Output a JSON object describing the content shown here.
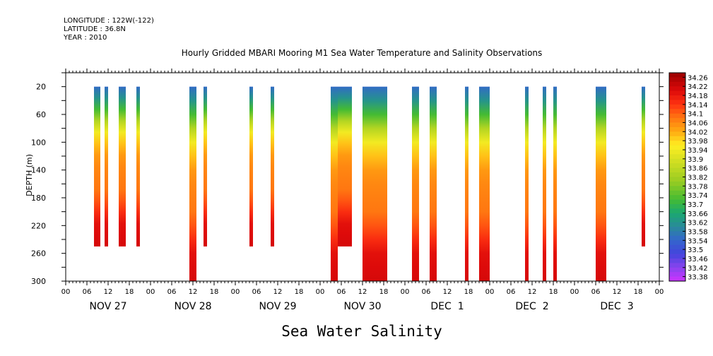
{
  "header": {
    "longitude": "LONGITUDE : 122W(-122)",
    "latitude": "LATITUDE : 36.8N",
    "year": "YEAR : 2010"
  },
  "chart_data": {
    "type": "heatmap",
    "title": "Hourly Gridded MBARI Mooring M1 Sea Water Temperature and Salinity Observations",
    "subtitle": "Sea Water Salinity",
    "ylabel": "DEPTH (m)",
    "xlabel": "",
    "x_range_hours": [
      0,
      168
    ],
    "y_range_m": [
      300,
      0
    ],
    "yticks": [
      20,
      60,
      100,
      140,
      180,
      220,
      260,
      300
    ],
    "xtick_labels": [
      "00",
      "06",
      "12",
      "18",
      "00",
      "06",
      "12",
      "18",
      "00",
      "06",
      "12",
      "18",
      "00",
      "06",
      "12",
      "18",
      "00",
      "06",
      "12",
      "18",
      "00",
      "06",
      "12",
      "18",
      "00",
      "06",
      "12",
      "18",
      "00"
    ],
    "day_labels": [
      "NOV 27",
      "NOV 28",
      "NOV 29",
      "NOV 30",
      "DEC  1",
      "DEC  2",
      "DEC  3"
    ],
    "colorbar": {
      "levels": [
        "34.26",
        "34.22",
        "34.18",
        "34.14",
        "34.1",
        "34.06",
        "34.02",
        "33.98",
        "33.94",
        "33.9",
        "33.86",
        "33.82",
        "33.78",
        "33.74",
        "33.7",
        "33.66",
        "33.62",
        "33.58",
        "33.54",
        "33.5",
        "33.46",
        "33.42",
        "33.38"
      ],
      "min": 33.36,
      "max": 34.28
    },
    "profile": {
      "depth": [
        20,
        40,
        60,
        80,
        100,
        120,
        140,
        160,
        180,
        200,
        220,
        240,
        260,
        280,
        300
      ],
      "salinity": [
        33.55,
        33.62,
        33.72,
        33.84,
        33.94,
        34.0,
        34.04,
        34.06,
        34.07,
        34.08,
        34.11,
        34.15,
        34.19,
        34.2,
        34.21
      ]
    },
    "columns": [
      {
        "start": 8.0,
        "end": 9.8,
        "bottom": 250
      },
      {
        "start": 11.0,
        "end": 12.0,
        "bottom": 250
      },
      {
        "start": 15.0,
        "end": 17.0,
        "bottom": 250
      },
      {
        "start": 20.0,
        "end": 21.0,
        "bottom": 250
      },
      {
        "start": 35.0,
        "end": 37.0,
        "bottom": 300
      },
      {
        "start": 39.0,
        "end": 40.0,
        "bottom": 250
      },
      {
        "start": 52.0,
        "end": 53.0,
        "bottom": 250
      },
      {
        "start": 58.0,
        "end": 59.0,
        "bottom": 250
      },
      {
        "start": 75.0,
        "end": 77.0,
        "bottom": 300
      },
      {
        "start": 77.0,
        "end": 81.0,
        "bottom": 250
      },
      {
        "start": 84.0,
        "end": 91.0,
        "bottom": 300
      },
      {
        "start": 98.0,
        "end": 100.0,
        "bottom": 300
      },
      {
        "start": 103.0,
        "end": 105.0,
        "bottom": 300
      },
      {
        "start": 113.0,
        "end": 114.0,
        "bottom": 300
      },
      {
        "start": 117.0,
        "end": 120.0,
        "bottom": 300
      },
      {
        "start": 130.0,
        "end": 131.0,
        "bottom": 300
      },
      {
        "start": 135.0,
        "end": 136.0,
        "bottom": 300
      },
      {
        "start": 138.0,
        "end": 139.0,
        "bottom": 300
      },
      {
        "start": 150.0,
        "end": 153.0,
        "bottom": 300
      },
      {
        "start": 163.0,
        "end": 164.0,
        "bottom": 250
      }
    ]
  }
}
